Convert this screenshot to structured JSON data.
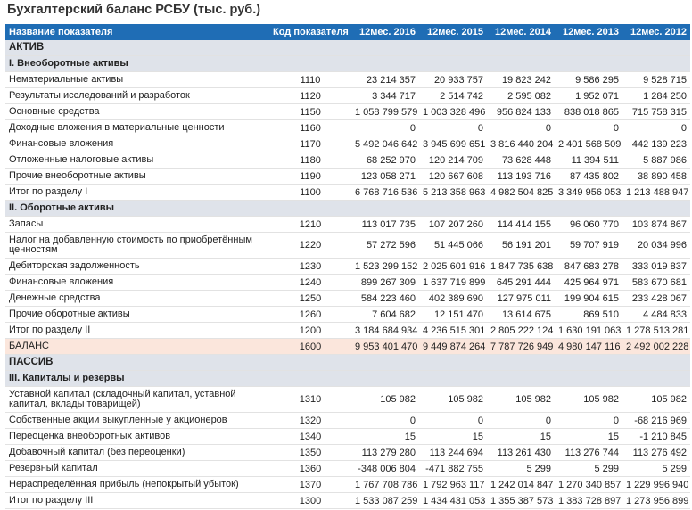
{
  "title": "Бухгалтерский баланс РСБУ (тыс. руб.)",
  "columns": [
    "Название показателя",
    "Код показателя",
    "12мес. 2016",
    "12мес. 2015",
    "12мес. 2014",
    "12мес. 2013",
    "12мес. 2012"
  ],
  "rows": [
    {
      "type": "section",
      "label": "АКТИВ"
    },
    {
      "type": "section",
      "label": "I. Внеоборотные активы"
    },
    {
      "type": "data",
      "name": "Нематериальные активы",
      "code": "1110",
      "values": [
        "23 214 357",
        "20 933 757",
        "19 823 242",
        "9 586 295",
        "9 528 715"
      ]
    },
    {
      "type": "data",
      "name": "Результаты исследований и разработок",
      "code": "1120",
      "values": [
        "3 344 717",
        "2 514 742",
        "2 595 082",
        "1 952 071",
        "1 284 250"
      ]
    },
    {
      "type": "data",
      "name": "Основные средства",
      "code": "1150",
      "values": [
        "1 058 799 579",
        "1 003 328 496",
        "956 824 133",
        "838 018 865",
        "715 758 315"
      ]
    },
    {
      "type": "data",
      "name": "Доходные вложения в материальные ценности",
      "code": "1160",
      "values": [
        "0",
        "0",
        "0",
        "0",
        "0"
      ]
    },
    {
      "type": "data",
      "name": "Финансовые вложения",
      "code": "1170",
      "values": [
        "5 492 046 642",
        "3 945 699 651",
        "3 816 440 204",
        "2 401 568 509",
        "442 139 223"
      ]
    },
    {
      "type": "data",
      "name": "Отложенные налоговые активы",
      "code": "1180",
      "values": [
        "68 252 970",
        "120 214 709",
        "73 628 448",
        "11 394 511",
        "5 887 986"
      ]
    },
    {
      "type": "data",
      "name": "Прочие внеоборотные активы",
      "code": "1190",
      "values": [
        "123 058 271",
        "120 667 608",
        "113 193 716",
        "87 435 802",
        "38 890 458"
      ]
    },
    {
      "type": "data",
      "name": "Итог по разделу I",
      "code": "1100",
      "values": [
        "6 768 716 536",
        "5 213 358 963",
        "4 982 504 825",
        "3 349 956 053",
        "1 213 488 947"
      ]
    },
    {
      "type": "section",
      "label": "II. Оборотные активы"
    },
    {
      "type": "data",
      "name": "Запасы",
      "code": "1210",
      "values": [
        "113 017 735",
        "107 207 260",
        "114 414 155",
        "96 060 770",
        "103 874 867"
      ]
    },
    {
      "type": "data",
      "tall": true,
      "name": "Налог на добавленную стоимость по приобретённым ценностям",
      "code": "1220",
      "values": [
        "57 272 596",
        "51 445 066",
        "56 191 201",
        "59 707 919",
        "20 034 996"
      ]
    },
    {
      "type": "data",
      "name": "Дебиторская задолженность",
      "code": "1230",
      "values": [
        "1 523 299 152",
        "2 025 601 916",
        "1 847 735 638",
        "847 683 278",
        "333 019 837"
      ]
    },
    {
      "type": "data",
      "name": "Финансовые вложения",
      "code": "1240",
      "values": [
        "899 267 309",
        "1 637 719 899",
        "645 291 444",
        "425 964 971",
        "583 670 681"
      ]
    },
    {
      "type": "data",
      "name": "Денежные средства",
      "code": "1250",
      "values": [
        "584 223 460",
        "402 389 690",
        "127 975 011",
        "199 904 615",
        "233 428 067"
      ]
    },
    {
      "type": "data",
      "name": "Прочие оборотные активы",
      "code": "1260",
      "values": [
        "7 604 682",
        "12 151 470",
        "13 614 675",
        "869 510",
        "4 484 833"
      ]
    },
    {
      "type": "data",
      "name": "Итог по разделу II",
      "code": "1200",
      "values": [
        "3 184 684 934",
        "4 236 515 301",
        "2 805 222 124",
        "1 630 191 063",
        "1 278 513 281"
      ]
    },
    {
      "type": "balance",
      "name": "БАЛАНС",
      "code": "1600",
      "values": [
        "9 953 401 470",
        "9 449 874 264",
        "7 787 726 949",
        "4 980 147 116",
        "2 492 002 228"
      ]
    },
    {
      "type": "section",
      "label": "ПАССИВ"
    },
    {
      "type": "section",
      "label": "III. Капиталы и резервы"
    },
    {
      "type": "data",
      "tall": true,
      "name": "Уставной капитал (складочный капитал, уставной капитал, вклады товарищей)",
      "code": "1310",
      "values": [
        "105 982",
        "105 982",
        "105 982",
        "105 982",
        "105 982"
      ]
    },
    {
      "type": "data",
      "name": "Собственные акции выкупленные у акционеров",
      "code": "1320",
      "values": [
        "0",
        "0",
        "0",
        "0",
        "-68 216 969"
      ]
    },
    {
      "type": "data",
      "name": "Переоценка внеоборотных активов",
      "code": "1340",
      "values": [
        "15",
        "15",
        "15",
        "15",
        "-1 210 845"
      ]
    },
    {
      "type": "data",
      "name": "Добавочный капитал (без переоценки)",
      "code": "1350",
      "values": [
        "113 279 280",
        "113 244 694",
        "113 261 430",
        "113 276 744",
        "113 276 492"
      ]
    },
    {
      "type": "data",
      "name": "Резервный капитал",
      "code": "1360",
      "values": [
        "-348 006 804",
        "-471 882 755",
        "5 299",
        "5 299",
        "5 299"
      ]
    },
    {
      "type": "data",
      "name": "Нераспределённая прибыль (непокрытый убыток)",
      "code": "1370",
      "values": [
        "1 767 708 786",
        "1 792 963 117",
        "1 242 014 847",
        "1 270 340 857",
        "1 229 996 940"
      ]
    },
    {
      "type": "data",
      "name": "Итог по разделу III",
      "code": "1300",
      "values": [
        "1 533 087 259",
        "1 434 431 053",
        "1 355 387 573",
        "1 383 728 897",
        "1 273 956 899"
      ]
    }
  ]
}
